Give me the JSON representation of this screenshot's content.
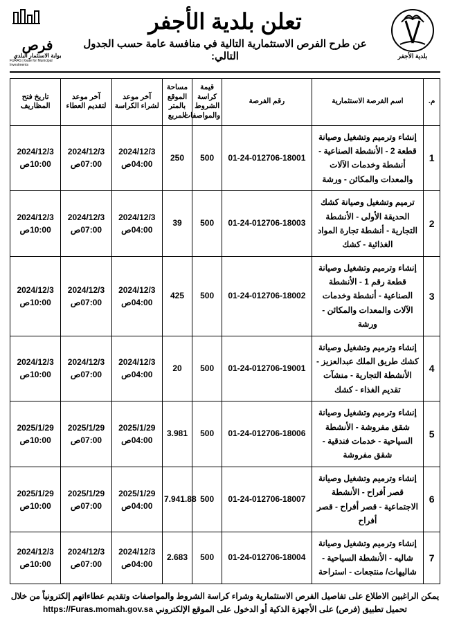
{
  "header": {
    "title": "تعلن بلدية الأجفر",
    "subtitle": "عن طرح الفرص الاستثمارية التالية في منافسة عامة حسب الجدول التالي:",
    "furas_label_ar": "فرص",
    "furas_label_sub": "بوابة الاستثمار البلدي",
    "furas_label_en": "FURAS | Gate for Municipal Investments",
    "muni_label": "بلدية الأجفر"
  },
  "columns": {
    "c0": "م.",
    "c1": "اسم الفرصة الاستثمارية",
    "c2": "رقم الفرصة",
    "c3": "قيمة كراسة الشروط والمواصفات",
    "c4": "مساحة الموقع بالمتر المربع",
    "c5": "آخر موعد لشراء الكراسة",
    "c6": "آخر موعد لتقديم العطاء",
    "c7": "تاريخ فتح المظاريف"
  },
  "rows": [
    {
      "idx": "1",
      "name": "إنشاء وترميم وتشغيل وصيانة قطعة 2 - الأنشطة الصناعية - أنشطة وخدمات الآلات والمعدات والمكائن - ورشة",
      "opnum": "01-24-012706-18001",
      "price": "500",
      "area": "250",
      "d1": "2024/12/3 04:00ص",
      "d2": "2024/12/3 07:00ص",
      "d3": "2024/12/3 10:00ص"
    },
    {
      "idx": "2",
      "name": "ترميم وتشغيل وصيانة كشك الحديقة الأولى - الأنشطة التجارية - أنشطة تجارة المواد الغذائية - كشك",
      "opnum": "01-24-012706-18003",
      "price": "500",
      "area": "39",
      "d1": "2024/12/3 04:00ص",
      "d2": "2024/12/3 07:00ص",
      "d3": "2024/12/3 10:00ص"
    },
    {
      "idx": "3",
      "name": "إنشاء وترميم وتشغيل وصيانة قطعة رقم 1 - الأنشطة الصناعية - أنشطة وخدمات الآلات والمعدات والمكائن - ورشة",
      "opnum": "01-24-012706-18002",
      "price": "500",
      "area": "425",
      "d1": "2024/12/3 04:00ص",
      "d2": "2024/12/3 07:00ص",
      "d3": "2024/12/3 10:00ص"
    },
    {
      "idx": "4",
      "name": "إنشاء وترميم وتشغيل وصيانة كشك طريق الملك عبدالعزيز - الأنشطة التجارية - منشآت تقديم الغذاء - كشك",
      "opnum": "01-24-012706-19001",
      "price": "500",
      "area": "20",
      "d1": "2024/12/3 04:00ص",
      "d2": "2024/12/3 07:00ص",
      "d3": "2024/12/3 10:00ص"
    },
    {
      "idx": "5",
      "name": "إنشاء وترميم وتشغيل وصيانة شقق مفروشة - الأنشطة السياحية - خدمات فندقية - شقق مفروشة",
      "opnum": "01-24-012706-18006",
      "price": "500",
      "area": "3.981",
      "d1": "2025/1/29 04:00ص",
      "d2": "2025/1/29 07:00ص",
      "d3": "2025/1/29 10:00ص"
    },
    {
      "idx": "6",
      "name": "إنشاء وترميم وتشغيل وصيانة قصر أفراح - الأنشطة الاجتماعية - قصر أفراح - قصر أفراح",
      "opnum": "01-24-012706-18007",
      "price": "500",
      "area": "7.941.88",
      "d1": "2025/1/29 04:00ص",
      "d2": "2025/1/29 07:00ص",
      "d3": "2025/1/29 10:00ص"
    },
    {
      "idx": "7",
      "name": "إنشاء وترميم وتشغيل وصيانة شاليه - الأنشطة السياحية - شاليهات/ منتجعات - استراحة",
      "opnum": "01-24-012706-18004",
      "price": "500",
      "area": "2.683",
      "d1": "2024/12/3 04:00ص",
      "d2": "2024/12/3 07:00ص",
      "d3": "2024/12/3 10:00ص"
    }
  ],
  "footer": {
    "line1": "يمكن الراغبين الاطلاع على تفاصيل الفرص الاستثمارية وشراء كراسة الشروط والمواصفات وتقديم عطاءاتهم إلكترونياً من خلال",
    "line2_pre": "تحميل تطبيق (فرص) على الأجهزة الذكية أو الدخول على الموقع الإلكتروني ",
    "url": "https://Furas.momah.gov.sa"
  }
}
